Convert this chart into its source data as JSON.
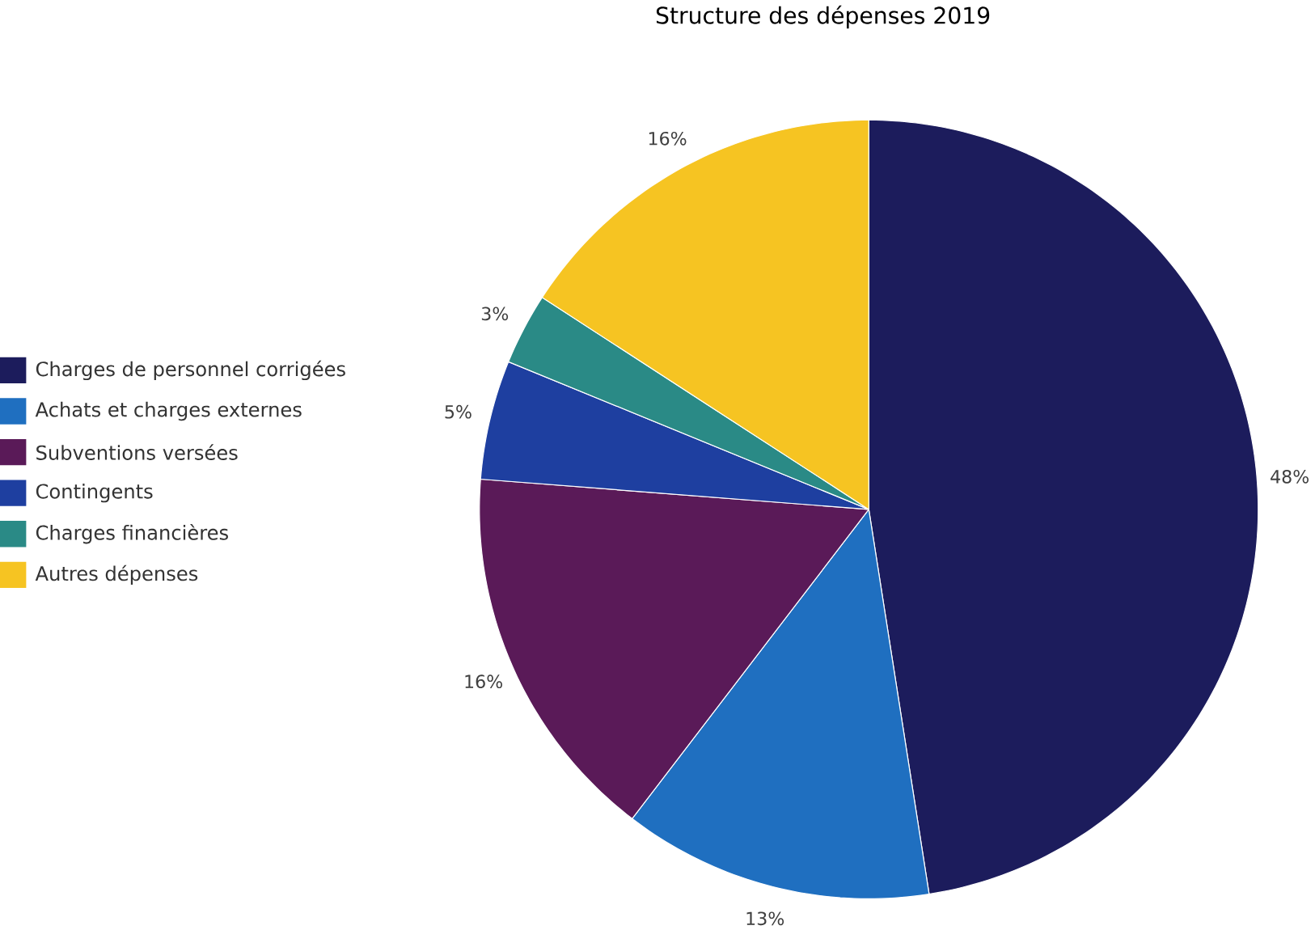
{
  "chart_data": {
    "type": "pie",
    "title": "Structure des dépenses 2019",
    "categories": [
      "Charges de personnel corrigées",
      "Achats et charges externes",
      "Subventions versées",
      "Contingents",
      "Charges financières",
      "Autres dépenses"
    ],
    "values": [
      48,
      13,
      16,
      5,
      3,
      16
    ],
    "value_labels": [
      "48%",
      "13%",
      "16%",
      "5%",
      "3%",
      "16%"
    ],
    "colors": [
      "#1c1c5c",
      "#1f6fc0",
      "#5a1a58",
      "#1e3fa0",
      "#2a8a86",
      "#f6c422"
    ],
    "legend": "left"
  }
}
